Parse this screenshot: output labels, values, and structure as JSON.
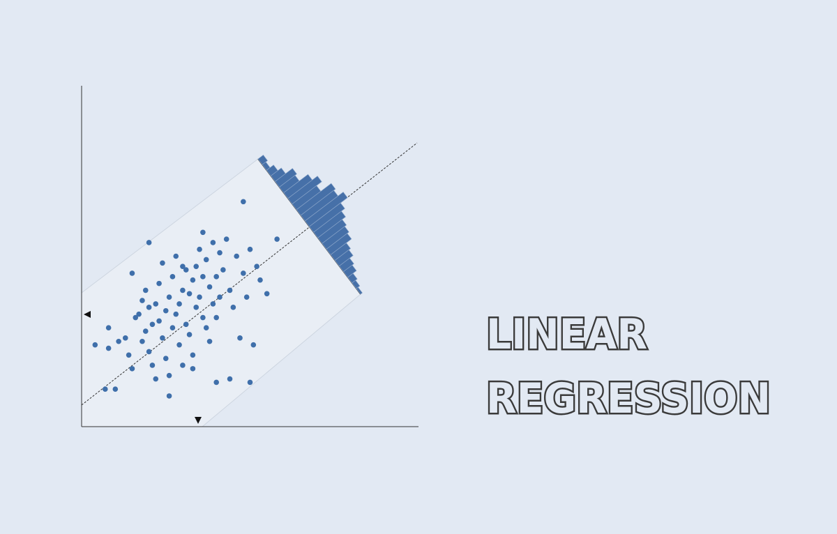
{
  "heading": [
    "LINEAR",
    "REGRESSION"
  ],
  "chart_data": [
    {
      "type": "scatter",
      "color": "#3f6faa",
      "xlim": [
        0,
        100
      ],
      "ylim": [
        0,
        100
      ],
      "x": [
        4,
        7,
        8,
        8,
        11,
        13,
        14,
        15,
        15,
        16,
        17,
        18,
        18,
        19,
        19,
        20,
        20,
        21,
        21,
        22,
        22,
        23,
        23,
        24,
        24,
        25,
        25,
        26,
        26,
        27,
        27,
        28,
        28,
        29,
        29,
        30,
        30,
        31,
        31,
        32,
        32,
        33,
        33,
        34,
        34,
        35,
        35,
        36,
        36,
        37,
        37,
        38,
        38,
        39,
        39,
        40,
        40,
        41,
        41,
        42,
        43,
        44,
        45,
        46,
        47,
        48,
        49,
        50,
        51,
        52,
        53,
        55,
        58,
        48,
        36,
        20,
        30,
        10,
        44,
        40,
        26,
        33,
        50
      ],
      "y": [
        24,
        11,
        23,
        29,
        25,
        26,
        21,
        17,
        45,
        32,
        33,
        25,
        37,
        40,
        28,
        22,
        35,
        18,
        30,
        36,
        14,
        42,
        31,
        26,
        48,
        34,
        20,
        38,
        15,
        44,
        29,
        33,
        50,
        36,
        24,
        40,
        18,
        46,
        30,
        39,
        27,
        43,
        21,
        47,
        35,
        38,
        52,
        32,
        44,
        29,
        49,
        41,
        25,
        54,
        36,
        44,
        32,
        51,
        38,
        46,
        55,
        40,
        35,
        50,
        26,
        45,
        38,
        52,
        24,
        47,
        43,
        39,
        55,
        66,
        57,
        54,
        47,
        11,
        14,
        13,
        9,
        17,
        13
      ]
    },
    {
      "type": "histogram",
      "color": "#4670a8",
      "ylim": [
        0,
        25
      ],
      "bins": [
        -12,
        -11,
        -10,
        -9,
        -8,
        -7,
        -6,
        -5,
        -4,
        -3,
        -2,
        -1,
        0,
        1,
        2,
        3,
        4,
        5,
        6,
        7,
        8,
        9,
        10,
        11,
        12
      ],
      "counts": [
        3,
        2,
        4,
        6,
        10,
        9,
        14,
        17,
        14,
        20,
        19,
        22,
        18,
        16,
        14,
        13,
        12,
        9,
        8,
        6,
        5,
        3,
        2,
        1
      ]
    }
  ]
}
